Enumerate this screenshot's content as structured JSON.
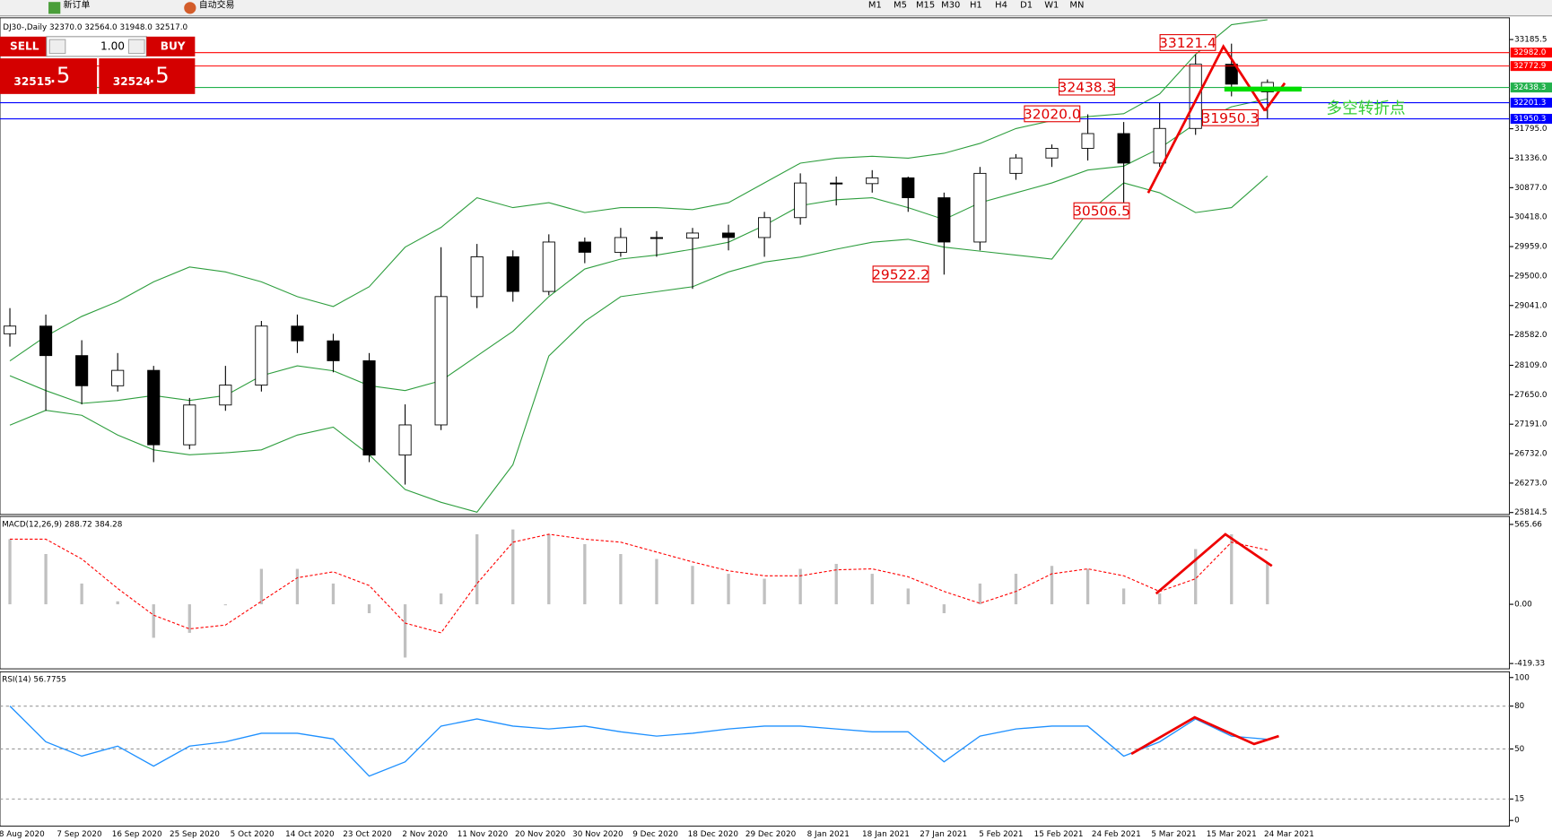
{
  "toolbar": {
    "buttons": [
      "新订单",
      "自动交易"
    ],
    "timeframes": [
      "M1",
      "M5",
      "M15",
      "M30",
      "H1",
      "H4",
      "D1",
      "W1",
      "MN"
    ]
  },
  "trade_panel": {
    "sell": "SELL",
    "buy": "BUY",
    "lots": "1.00",
    "bid": "32515",
    "bid_frac": ".5",
    "ask": "32524",
    "ask_frac": ".5"
  },
  "notes": [
    "多空转折点"
  ],
  "chart_data": [
    {
      "type": "candlestick",
      "title": "DJ30-,Daily",
      "title_values": "32370.0 32564.0 31948.0 32517.0",
      "open": [
        28600,
        28720,
        28260,
        27790,
        28030,
        26870,
        27490,
        27800,
        28720,
        28490,
        28180,
        26710,
        27180,
        29180,
        29800,
        29260,
        30030,
        29870,
        30100,
        30090,
        30170,
        30100,
        30410,
        30950,
        30940,
        31030,
        30720,
        30030,
        31100,
        31340,
        31490,
        31720,
        31260,
        31800,
        32800,
        32370
      ],
      "high": [
        29000,
        28900,
        28500,
        28300,
        28100,
        27600,
        28100,
        28800,
        28900,
        28600,
        28300,
        27500,
        29950,
        30000,
        29900,
        30150,
        30100,
        30250,
        30200,
        30250,
        30300,
        30500,
        31100,
        31050,
        31150,
        31050,
        30800,
        31200,
        31400,
        31550,
        32020,
        31900,
        32200,
        32950,
        33121.4,
        32564
      ],
      "low": [
        28400,
        27400,
        27500,
        27700,
        26600,
        26800,
        27400,
        27700,
        28300,
        28000,
        26600,
        26250,
        27100,
        29000,
        29100,
        29200,
        29700,
        29800,
        29800,
        29300,
        29900,
        29800,
        30300,
        30600,
        30800,
        30500,
        29522.2,
        29900,
        31000,
        31200,
        31300,
        30506.5,
        31200,
        31700,
        32300,
        31948
      ],
      "close": [
        28720,
        28260,
        27790,
        28030,
        26870,
        27490,
        27800,
        28720,
        28490,
        28180,
        26710,
        27180,
        29180,
        29800,
        29260,
        30030,
        29870,
        30100,
        30090,
        30170,
        30100,
        30410,
        30950,
        30940,
        31030,
        30720,
        30030,
        31100,
        31340,
        31490,
        31720,
        31260,
        31800,
        32800,
        32490,
        32517
      ],
      "bands": [
        {
          "name": "upper",
          "color": "#2e9e3e",
          "values": [
            28177,
            28562,
            28871,
            29102,
            29410,
            29641,
            29564,
            29410,
            29179,
            29025,
            29333,
            29950,
            30258,
            30720,
            30566,
            30643,
            30489,
            30566,
            30566,
            30535,
            30643,
            30951,
            31259,
            31336,
            31367,
            31336,
            31413,
            31567,
            31798,
            31922,
            31984,
            32030,
            32338,
            32954,
            33417,
            33494
          ]
        },
        {
          "name": "middle",
          "color": "#2e9e3e",
          "values": [
            27946,
            27715,
            27515,
            27561,
            27638,
            27561,
            27638,
            27946,
            28100,
            28023,
            27792,
            27715,
            27869,
            28254,
            28639,
            29179,
            29610,
            29764,
            29826,
            29918,
            30027,
            30289,
            30597,
            30689,
            30720,
            30566,
            30381,
            30643,
            30797,
            30951,
            31151,
            31213,
            31490,
            31875,
            32137,
            32261
          ]
        },
        {
          "name": "lower",
          "color": "#2e9e3e",
          "values": [
            27176,
            27407,
            27330,
            27022,
            26791,
            26714,
            26745,
            26791,
            27022,
            27145,
            26714,
            26174,
            25974,
            25820,
            26560,
            28254,
            28794,
            29179,
            29256,
            29333,
            29564,
            29718,
            29795,
            29918,
            30027,
            30073,
            29950,
            29888,
            29826,
            29764,
            30489,
            30951,
            30797,
            30489,
            30566,
            31059
          ]
        }
      ],
      "levels": [
        {
          "value": 32982.0,
          "label": "32982.0",
          "color": "#ff0000"
        },
        {
          "value": 32772.9,
          "label": "32772.9",
          "color": "#ff0000"
        },
        {
          "value": 32438.3,
          "label": "32438.3",
          "color": "#22b14c"
        },
        {
          "value": 32201.3,
          "label": "32201.3",
          "color": "#0000ff"
        },
        {
          "value": 31950.3,
          "label": "31950.3",
          "color": "#0000ff"
        }
      ],
      "annotations": [
        "33121.4",
        "32438.3",
        "32020.0",
        "31950.3",
        "30506.5",
        "29522.2"
      ],
      "ylim": [
        25784,
        33524
      ],
      "yticks": [
        33185.5,
        {
          "value": 31795,
          "label": "31795.0"
        },
        {
          "value": 31336,
          "label": "31336.0"
        },
        {
          "value": 30877,
          "label": "30877.0"
        },
        {
          "value": 30418,
          "label": "30418.0"
        },
        {
          "value": 29959,
          "label": "29959.0"
        },
        {
          "value": 29500,
          "label": "29500.0"
        },
        {
          "value": 29041,
          "label": "29041.0"
        },
        {
          "value": 28582,
          "label": "28582.0"
        },
        {
          "value": 28109,
          "label": "28109.0"
        },
        {
          "value": 27650,
          "label": "27650.0"
        },
        {
          "value": 27191,
          "label": "27191.0"
        },
        {
          "value": 26732,
          "label": "26732.0"
        },
        {
          "value": 26273,
          "label": "26273.0"
        },
        25814.5
      ],
      "x_labels": [
        "8 Aug 2020",
        "7 Sep 2020",
        "16 Sep 2020",
        "25 Sep 2020",
        "5 Oct 2020",
        "14 Oct 2020",
        "23 Oct 2020",
        "2 Nov 2020",
        "11 Nov 2020",
        "20 Nov 2020",
        "30 Nov 2020",
        "9 Dec 2020",
        "18 Dec 2020",
        "29 Dec 2020",
        "8 Jan 2021",
        "18 Jan 2021",
        "27 Jan 2021",
        "5 Feb 2021",
        "15 Feb 2021",
        "24 Feb 2021",
        "5 Mar 2021",
        "15 Mar 2021",
        "24 Mar 2021"
      ]
    },
    {
      "type": "macd",
      "title": "MACD(12,26,9) 288.72 384.28",
      "series": [
        {
          "name": "MACD",
          "color": "#c0c0c0",
          "values": [
            461,
            356,
            147,
            21,
            -237,
            -202,
            -7,
            251,
            251,
            147,
            -63,
            -377,
            77,
            496,
            530,
            496,
            426,
            356,
            321,
            272,
            216,
            181,
            251,
            286,
            216,
            112,
            -63,
            147,
            216,
            272,
            251,
            112,
            77,
            391,
            496,
            288.72
          ]
        },
        {
          "name": "Signal",
          "color": "#ff0000",
          "values": [
            461,
            461,
            321,
            112,
            -77,
            -174,
            -147,
            21,
            188,
            230,
            133,
            -133,
            -202,
            147,
            440,
            496,
            461,
            440,
            370,
            300,
            237,
            202,
            202,
            244,
            251,
            195,
            91,
            7,
            91,
            216,
            251,
            202,
            91,
            181,
            440,
            384.28
          ]
        }
      ],
      "ylim": [
        -457,
        622
      ],
      "yticks": [
        565.66,
        {
          "value": 0,
          "label": "0.00"
        },
        -419.33
      ]
    },
    {
      "type": "rsi",
      "title": "RSI(14) 56.7755",
      "color": "#1e90ff",
      "values": [
        80,
        55,
        45,
        52,
        38,
        52,
        55,
        61,
        61,
        57,
        31,
        41,
        66,
        71,
        66,
        64,
        66,
        62,
        59,
        61,
        64,
        66,
        66,
        64,
        62,
        62,
        41,
        59,
        64,
        66,
        66,
        45,
        55,
        71,
        59,
        56.7755
      ],
      "ylim": [
        -4,
        104
      ],
      "yticks": [
        100,
        80,
        50,
        15,
        0
      ],
      "levels": [
        80,
        50,
        15
      ]
    }
  ]
}
